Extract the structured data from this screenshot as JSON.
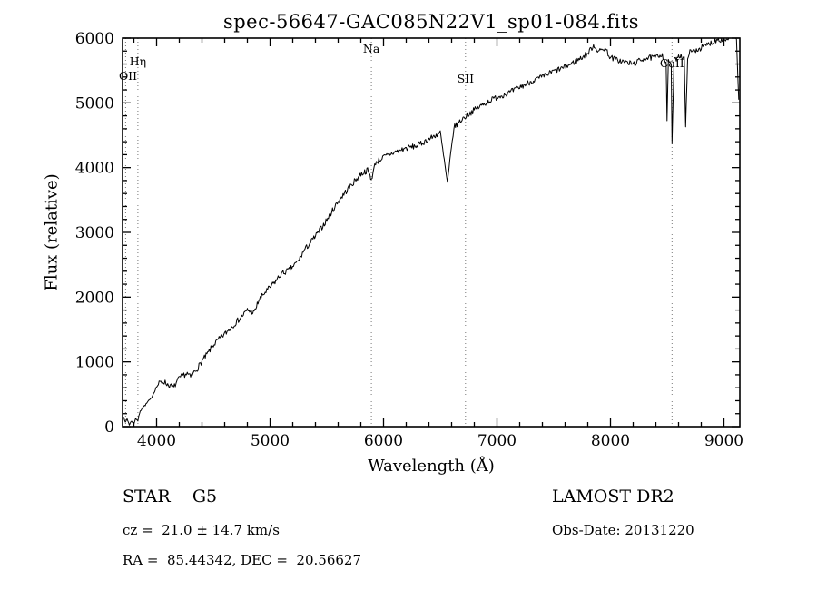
{
  "title": "spec-56647-GAC085N22V1_sp01-084.fits",
  "footer": {
    "object_class": "STAR    G5",
    "survey": "LAMOST DR2",
    "cz": "cz =  21.0 ± 14.7 km/s",
    "obs_date": "Obs-Date: 20131220",
    "ra_dec": "RA =  85.44342, DEC =  20.56627"
  },
  "colors": {
    "axis": "#000000",
    "spectrum": "#000000",
    "ref_line": "#777777",
    "background": "#ffffff"
  },
  "chart_data": {
    "type": "line",
    "title": "spec-56647-GAC085N22V1_sp01-084.fits",
    "xlabel": "Wavelength (Å)",
    "ylabel": "Flux (relative)",
    "xlim": [
      3700,
      9140
    ],
    "ylim": [
      0,
      6000
    ],
    "x_ticks": [
      4000,
      5000,
      6000,
      7000,
      8000,
      9000
    ],
    "y_ticks": [
      0,
      1000,
      2000,
      3000,
      4000,
      5000,
      6000
    ],
    "x_minor_step": 200,
    "y_minor_step": 200,
    "grid": false,
    "legend": "none",
    "noise_amplitude": 45,
    "noise_seed": 7,
    "reference_lines": [
      {
        "wavelength": 3727,
        "label": "OII",
        "label_dy": 46
      },
      {
        "wavelength": 3835,
        "label": "Hη",
        "label_dy": 30
      },
      {
        "wavelength": 5893,
        "label": "Na",
        "label_dy": 16
      },
      {
        "wavelength": 6722,
        "label": "SII",
        "label_dy": 49
      },
      {
        "wavelength": 8542,
        "label": "CaII",
        "label_dy": 32
      }
    ],
    "series": [
      {
        "name": "flux",
        "x": [
          3710,
          3725,
          3740,
          3760,
          3780,
          3800,
          3815,
          3835,
          3850,
          3875,
          3900,
          3925,
          3950,
          3975,
          4000,
          4030,
          4060,
          4090,
          4120,
          4150,
          4180,
          4210,
          4240,
          4270,
          4300,
          4330,
          4360,
          4400,
          4450,
          4500,
          4550,
          4600,
          4650,
          4700,
          4750,
          4800,
          4861,
          4900,
          4950,
          5000,
          5050,
          5100,
          5170,
          5250,
          5300,
          5400,
          5500,
          5600,
          5700,
          5800,
          5860,
          5893,
          5930,
          6000,
          6100,
          6200,
          6300,
          6400,
          6500,
          6563,
          6620,
          6700,
          6800,
          6900,
          7000,
          7100,
          7200,
          7300,
          7400,
          7500,
          7600,
          7700,
          7800,
          7850,
          7900,
          7950,
          8000,
          8100,
          8200,
          8300,
          8400,
          8450,
          8490,
          8498,
          8510,
          8535,
          8542,
          8560,
          8600,
          8650,
          8662,
          8680,
          8700,
          8800,
          8900,
          8950,
          9000,
          9050,
          9090,
          9110,
          9130
        ],
        "y": [
          160,
          60,
          120,
          30,
          90,
          40,
          130,
          90,
          210,
          300,
          330,
          390,
          430,
          520,
          620,
          680,
          700,
          660,
          630,
          600,
          700,
          760,
          800,
          820,
          760,
          840,
          900,
          1010,
          1130,
          1260,
          1350,
          1430,
          1520,
          1610,
          1700,
          1800,
          1760,
          1950,
          2060,
          2150,
          2250,
          2360,
          2420,
          2560,
          2720,
          2940,
          3190,
          3480,
          3700,
          3900,
          3960,
          3820,
          4080,
          4160,
          4240,
          4300,
          4340,
          4440,
          4540,
          3760,
          4620,
          4760,
          4890,
          5000,
          5090,
          5150,
          5240,
          5330,
          5400,
          5490,
          5550,
          5650,
          5760,
          5890,
          5790,
          5850,
          5700,
          5640,
          5600,
          5690,
          5700,
          5760,
          5620,
          4720,
          5660,
          5600,
          4360,
          5640,
          5740,
          5700,
          4620,
          5690,
          5780,
          5850,
          5940,
          5990,
          5960,
          6020,
          6050,
          5980,
          5050
        ]
      }
    ]
  }
}
